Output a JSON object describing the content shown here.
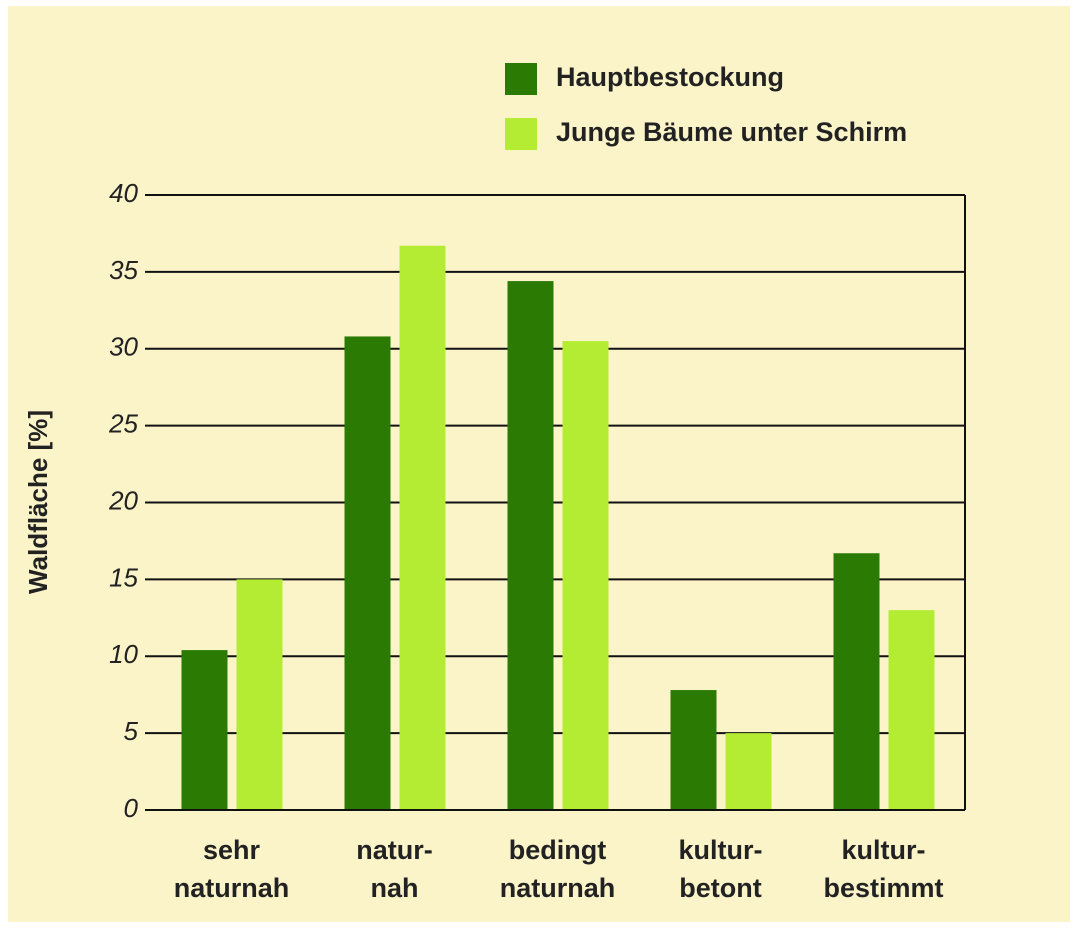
{
  "chart_data": {
    "type": "bar",
    "ylabel": "Waldfläche [%]",
    "categories": [
      [
        "sehr",
        "naturnah"
      ],
      [
        "natur-",
        "nah"
      ],
      [
        "bedingt",
        "naturnah"
      ],
      [
        "kultur-",
        "betont"
      ],
      [
        "kultur-",
        "bestimmt"
      ]
    ],
    "series": [
      {
        "name": "Hauptbestockung",
        "color": "#2a7a04",
        "values": [
          10.4,
          30.8,
          34.4,
          7.8,
          16.7
        ]
      },
      {
        "name": "Junge Bäume unter Schirm",
        "color": "#b4ec34",
        "values": [
          15.0,
          36.7,
          30.5,
          5.0,
          13.0
        ]
      }
    ],
    "ylim": [
      0,
      40
    ],
    "yticks": [
      0,
      5,
      10,
      15,
      20,
      25,
      30,
      35,
      40
    ],
    "grid": true,
    "legend": "top-right"
  }
}
